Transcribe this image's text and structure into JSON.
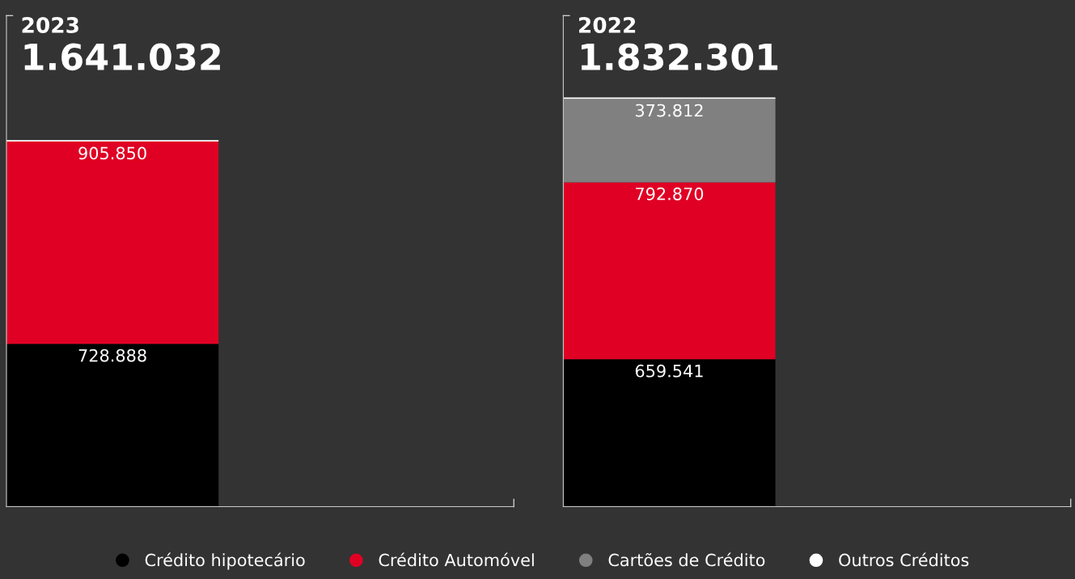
{
  "chart_data": [
    {
      "type": "bar",
      "title": "2023",
      "subtitle": "1.641.032",
      "categories": [
        null
      ],
      "stacked": true,
      "legend": "bottom",
      "tick_labels": false,
      "series": [
        {
          "name": "Crédito hipotecário",
          "color": "#000000",
          "values": [
            728888
          ],
          "value_labels": [
            "728.888"
          ]
        },
        {
          "name": "Crédito Automóvel",
          "color": "#e00024",
          "values": [
            905850
          ],
          "value_labels": [
            "905.850"
          ]
        },
        {
          "name": "Cartões de Crédito",
          "color": "#808080",
          "values": [
            null
          ],
          "value_labels": [
            null
          ]
        },
        {
          "name": "Outros Créditos",
          "color": "#ffffff",
          "values": [
            6294
          ],
          "value_labels": [
            null
          ]
        }
      ]
    },
    {
      "type": "bar",
      "title": "2022",
      "subtitle": "1.832.301",
      "categories": [
        null
      ],
      "stacked": true,
      "tick_labels": false,
      "series": [
        {
          "color": "#000000",
          "values": [
            659541
          ],
          "value_labels": [
            "659.541"
          ]
        },
        {
          "color": "#e00024",
          "values": [
            792870
          ],
          "value_labels": [
            "792.870"
          ]
        },
        {
          "color": "#808080",
          "values": [
            373812
          ],
          "value_labels": [
            "373.812"
          ]
        },
        {
          "color": "#ffffff",
          "values": [
            6078
          ],
          "value_labels": [
            null
          ]
        }
      ]
    }
  ]
}
